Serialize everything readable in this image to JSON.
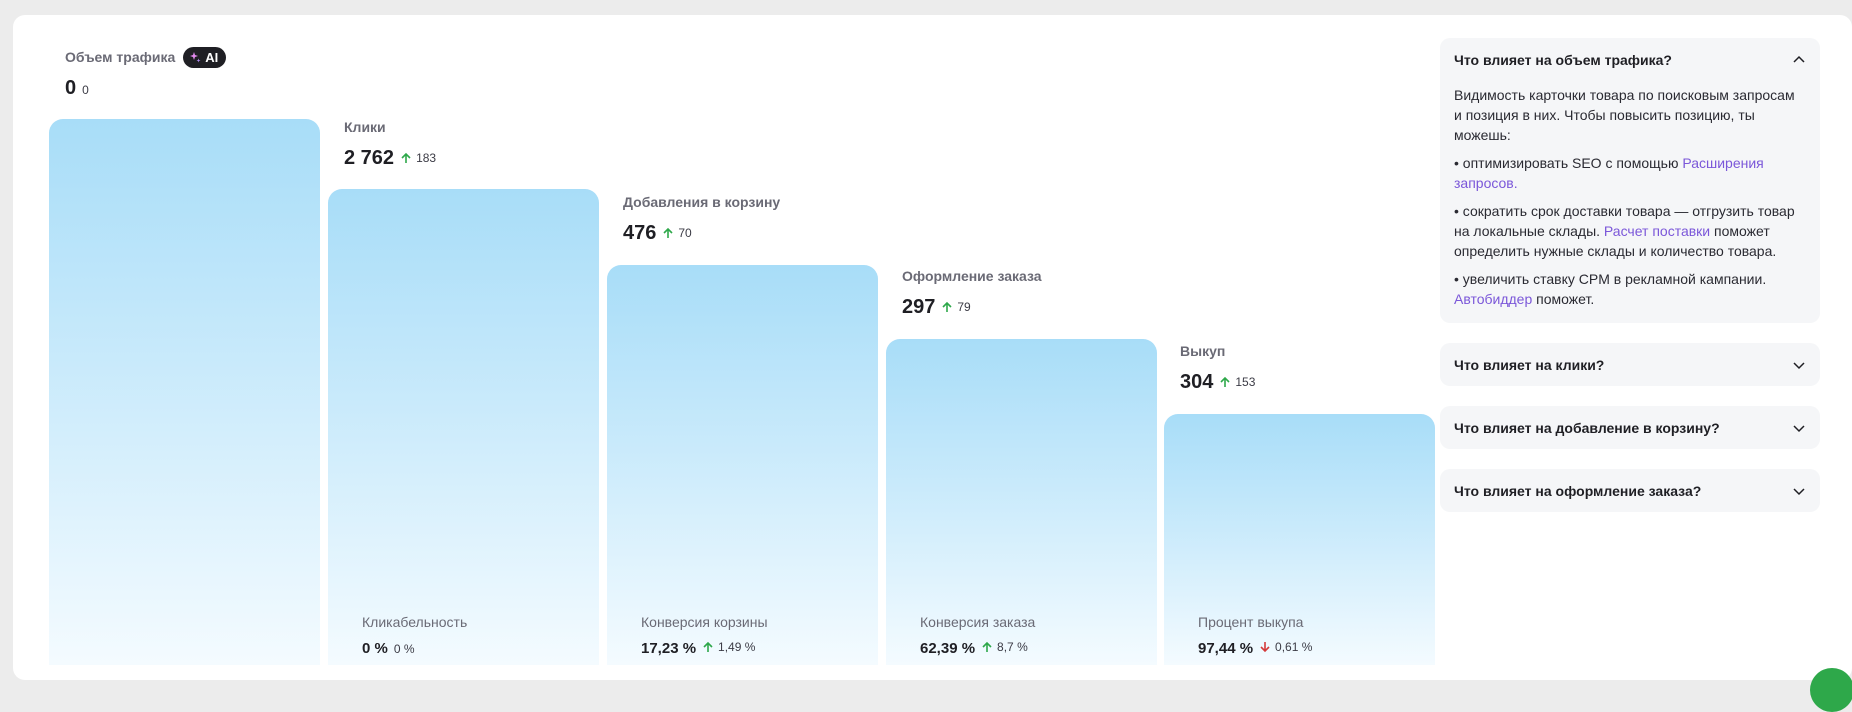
{
  "funnel": {
    "stages": [
      {
        "title": "Объем трафика",
        "value": "0",
        "delta": "0",
        "trend": "none",
        "ai_badge": "AI"
      },
      {
        "title": "Клики",
        "value": "2 762",
        "delta": "183",
        "trend": "up",
        "conversion": {
          "label": "Кликабельность",
          "value": "0 %",
          "delta": "0 %",
          "trend": "none"
        }
      },
      {
        "title": "Добавления в корзину",
        "value": "476",
        "delta": "70",
        "trend": "up",
        "conversion": {
          "label": "Конверсия корзины",
          "value": "17,23 %",
          "delta": "1,49 %",
          "trend": "up"
        }
      },
      {
        "title": "Оформление заказа",
        "value": "297",
        "delta": "79",
        "trend": "up",
        "conversion": {
          "label": "Конверсия заказа",
          "value": "62,39 %",
          "delta": "8,7 %",
          "trend": "up"
        }
      },
      {
        "title": "Выкуп",
        "value": "304",
        "delta": "153",
        "trend": "up",
        "conversion": {
          "label": "Процент выкупа",
          "value": "97,44 %",
          "delta": "0,61 %",
          "trend": "down"
        }
      }
    ]
  },
  "sidebar": {
    "accordions": [
      {
        "title": "Что влияет на объем трафика?",
        "expanded": true,
        "intro": "Видимость карточки товара по поисковым запросам и позиция в них. Чтобы повысить позицию, ты можешь:",
        "bullet1_pre": "• оптимизировать SEO с помощью ",
        "bullet1_link": "Расширения запросов.",
        "bullet2_pre": "• сократить срок доставки товара — отгрузить товар на локальные склады. ",
        "bullet2_link": "Расчет поставки",
        "bullet2_post": " поможет определить нужные склады и количество товара.",
        "bullet3_pre": "• увеличить ставку CPM в рекламной кампании. ",
        "bullet3_link": "Автобиддер",
        "bullet3_post": " поможет."
      },
      {
        "title": "Что влияет на клики?",
        "expanded": false
      },
      {
        "title": "Что влияет на добавление в корзину?",
        "expanded": false
      },
      {
        "title": "Что влияет на оформление заказа?",
        "expanded": false
      }
    ]
  },
  "colors": {
    "bar_top": "#a8ddf8",
    "bar_bottom": "#f4fbff",
    "up": "#2ea84a",
    "down": "#d43a3a",
    "link": "#7b57d9"
  },
  "icons": {
    "ai": "sparkles-icon",
    "up": "arrow-up-icon",
    "down": "arrow-down-icon",
    "collapse": "chevron-up-icon",
    "expand": "chevron-down-icon",
    "fab": "chat-icon"
  }
}
